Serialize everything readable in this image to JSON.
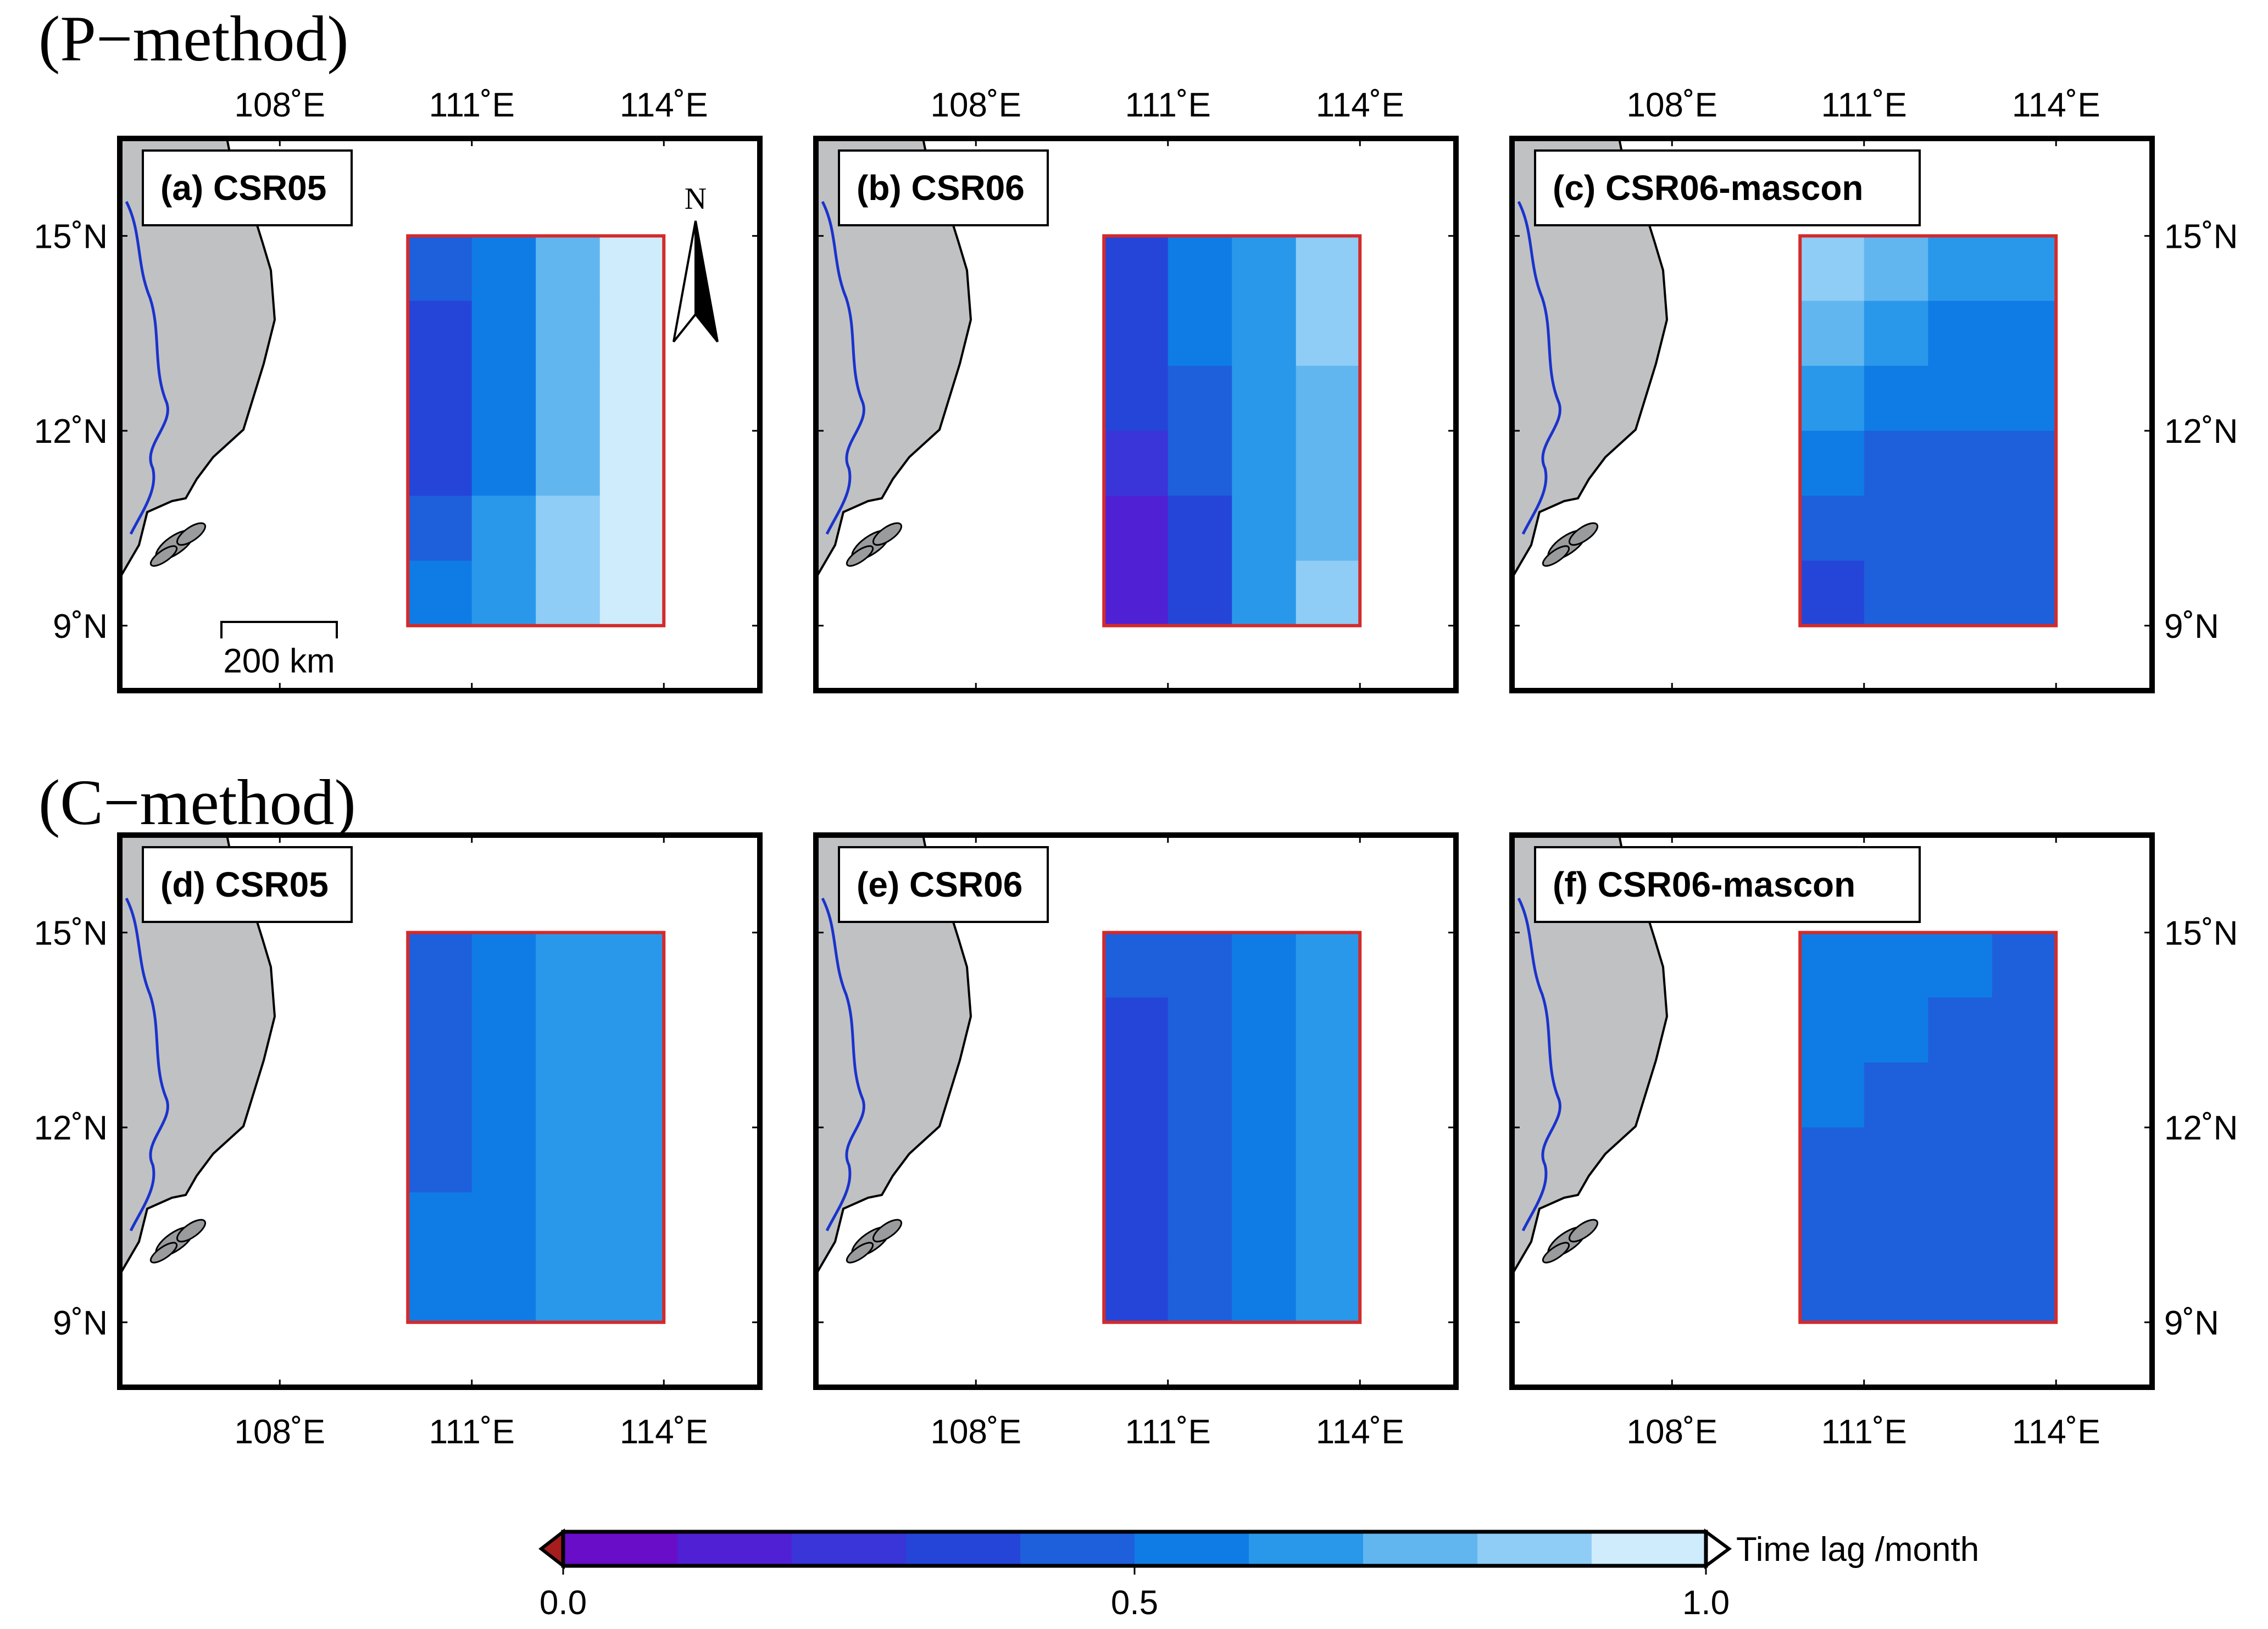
{
  "titles": {
    "top": "(P−method)",
    "bottom": "(C−method)"
  },
  "lon_ticks": [
    "108˚E",
    "111˚E",
    "114˚E"
  ],
  "lat_ticks": [
    "15˚N",
    "12˚N",
    "9˚N"
  ],
  "north_arrow": "N",
  "scale_bar": "200 km",
  "map_extent": {
    "lon": [
      105.5,
      115.5
    ],
    "lat": [
      8.0,
      16.5
    ]
  },
  "grid_extent": {
    "lon": [
      110.0,
      114.0
    ],
    "lat": [
      9.0,
      15.0
    ],
    "cols": 4,
    "rows": 6
  },
  "colors": {
    "land": "#c0c1c3",
    "river": "#1a33cc",
    "box": "#d42a2a",
    "frame": "#000000",
    "palette": [
      "#6a0dc9",
      "#5020d4",
      "#3a35d8",
      "#2545d8",
      "#1e5fdb",
      "#0f7ce6",
      "#2a98ea",
      "#62b6ef",
      "#8fcdf6",
      "#cfecfc"
    ]
  },
  "chart_data": {
    "type": "heatmap",
    "variable": "Time lag /month",
    "colorbar": {
      "label": "Time lag /month",
      "range": [
        0.0,
        1.0
      ],
      "ticks": [
        "0.0",
        "0.5",
        "1.0"
      ],
      "bins": 10
    },
    "panels": [
      {
        "label": "(a) CSR05",
        "method": "P−method",
        "values": [
          [
            0.45,
            0.55,
            0.75,
            0.95
          ],
          [
            0.35,
            0.55,
            0.75,
            0.95
          ],
          [
            0.35,
            0.55,
            0.75,
            0.95
          ],
          [
            0.35,
            0.55,
            0.75,
            0.95
          ],
          [
            0.45,
            0.65,
            0.85,
            1.0
          ],
          [
            0.55,
            0.65,
            0.85,
            1.0
          ]
        ]
      },
      {
        "label": "(b) CSR06",
        "method": "P−method",
        "values": [
          [
            0.35,
            0.55,
            0.65,
            0.85
          ],
          [
            0.35,
            0.55,
            0.65,
            0.85
          ],
          [
            0.35,
            0.45,
            0.65,
            0.75
          ],
          [
            0.25,
            0.45,
            0.65,
            0.75
          ],
          [
            0.15,
            0.35,
            0.65,
            0.75
          ],
          [
            0.15,
            0.35,
            0.65,
            0.85
          ]
        ]
      },
      {
        "label": "(c) CSR06-mascon",
        "method": "P−method",
        "values": [
          [
            0.85,
            0.75,
            0.65,
            0.65
          ],
          [
            0.75,
            0.65,
            0.55,
            0.55
          ],
          [
            0.65,
            0.55,
            0.55,
            0.55
          ],
          [
            0.55,
            0.45,
            0.45,
            0.45
          ],
          [
            0.45,
            0.45,
            0.45,
            0.45
          ],
          [
            0.35,
            0.45,
            0.45,
            0.45
          ]
        ]
      },
      {
        "label": "(d) CSR05",
        "method": "C−method",
        "values": [
          [
            0.45,
            0.55,
            0.65,
            0.65
          ],
          [
            0.45,
            0.55,
            0.65,
            0.65
          ],
          [
            0.45,
            0.55,
            0.65,
            0.65
          ],
          [
            0.45,
            0.55,
            0.65,
            0.65
          ],
          [
            0.55,
            0.55,
            0.65,
            0.65
          ],
          [
            0.55,
            0.55,
            0.65,
            0.65
          ]
        ]
      },
      {
        "label": "(e) CSR06",
        "method": "C−method",
        "values": [
          [
            0.45,
            0.45,
            0.55,
            0.65
          ],
          [
            0.35,
            0.45,
            0.55,
            0.65
          ],
          [
            0.35,
            0.45,
            0.55,
            0.65
          ],
          [
            0.35,
            0.45,
            0.55,
            0.65
          ],
          [
            0.35,
            0.45,
            0.55,
            0.65
          ],
          [
            0.35,
            0.45,
            0.55,
            0.65
          ]
        ]
      },
      {
        "label": "(f) CSR06-mascon",
        "method": "C−method",
        "values": [
          [
            0.55,
            0.55,
            0.55,
            0.45
          ],
          [
            0.55,
            0.55,
            0.45,
            0.45
          ],
          [
            0.55,
            0.45,
            0.45,
            0.45
          ],
          [
            0.45,
            0.45,
            0.45,
            0.45
          ],
          [
            0.45,
            0.45,
            0.45,
            0.45
          ],
          [
            0.45,
            0.45,
            0.45,
            0.45
          ]
        ]
      }
    ]
  }
}
